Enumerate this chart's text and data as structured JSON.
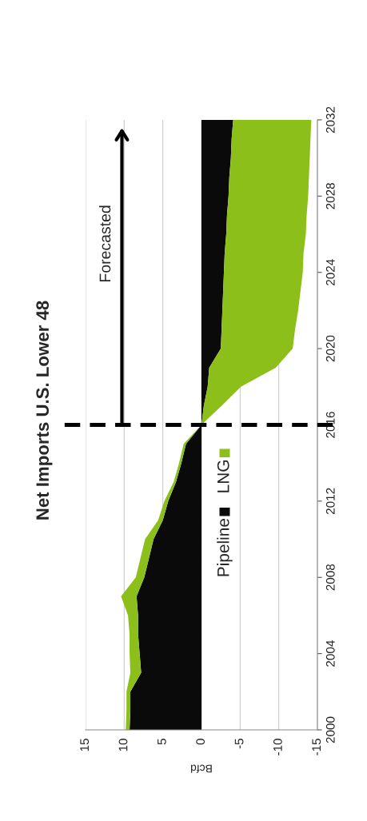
{
  "chart_data": {
    "type": "area",
    "stacked": true,
    "orientation": "horizontal",
    "title": "Net Imports U.S. Lower 48",
    "xlabel": "Bcfd",
    "categories": [
      "2032",
      null,
      null,
      null,
      "2028",
      null,
      null,
      null,
      "2024",
      null,
      null,
      null,
      "2020",
      null,
      null,
      null,
      "2016",
      null,
      null,
      null,
      "2012",
      null,
      null,
      null,
      "2008",
      null,
      null,
      null,
      "2004",
      null,
      null,
      null,
      "2000"
    ],
    "series": [
      {
        "name": "Pipeline",
        "color": "#0a0a0a",
        "values": [
          -4.1,
          -3.9,
          -3.8,
          -3.6,
          -3.5,
          -3.3,
          -3.2,
          -3.0,
          -2.9,
          -2.8,
          -2.7,
          -2.6,
          -2.5,
          -1.0,
          -0.8,
          -0.3,
          0.0,
          2.0,
          2.6,
          3.3,
          4.3,
          5.0,
          6.2,
          6.8,
          7.4,
          8.4,
          8.2,
          8.2,
          8.0,
          7.8,
          9.2,
          9.2,
          9.3
        ]
      },
      {
        "name": "LNG",
        "color": "#8cbf1a",
        "values": [
          -10.1,
          -10.2,
          -10.2,
          -10.3,
          -10.3,
          -10.3,
          -10.3,
          -10.2,
          -10.2,
          -10.0,
          -9.8,
          -9.5,
          -9.3,
          -8.6,
          -4.3,
          -2.3,
          0.0,
          0.3,
          0.3,
          0.3,
          0.5,
          0.6,
          1.1,
          1.1,
          1.1,
          2.0,
          1.3,
          1.1,
          1.3,
          1.4,
          0.5,
          0.5,
          0.5
        ]
      }
    ],
    "xlim": [
      15,
      -15
    ],
    "xticks": [
      15,
      10,
      5,
      0,
      -5,
      -10,
      -15
    ],
    "grid": "x",
    "legend": "right",
    "ref_lines": [
      {
        "axis": "y",
        "value": "2016",
        "color": "#000000",
        "line_style": "dashed"
      }
    ],
    "annotations": [
      "Forecasted"
    ]
  }
}
